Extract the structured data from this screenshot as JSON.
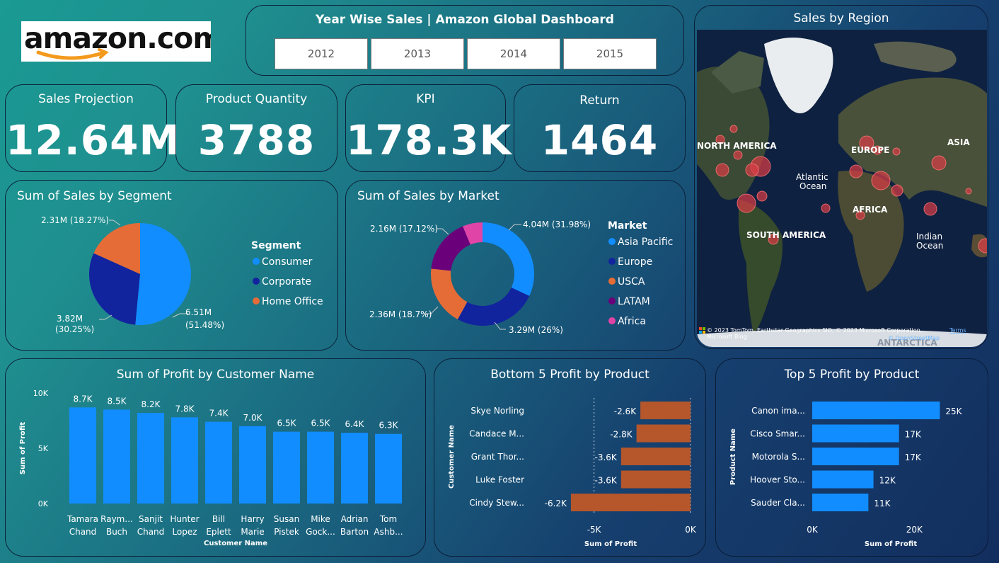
{
  "logo": {
    "text": "amazon.com"
  },
  "filter": {
    "title": "Year Wise Sales | Amazon Global Dashboard",
    "years": [
      "2012",
      "2013",
      "2014",
      "2015"
    ]
  },
  "kpis": [
    {
      "label": "Sales Projection",
      "value": "12.64M"
    },
    {
      "label": "Product Quantity",
      "value": "3788"
    },
    {
      "label": "KPI",
      "value": "178.3K"
    },
    {
      "label": "Return",
      "value": "1464"
    }
  ],
  "map": {
    "title": "Sales by Region",
    "labels": [
      "NORTH AMERICA",
      "EUROPE",
      "ASIA",
      "Atlantic",
      "Ocean",
      "AFRICA",
      "SOUTH AMERICA",
      "Indian",
      "Ocean",
      "ANTARCTICA"
    ],
    "attribution": "© 2023 TomTom, Earthstar Geographics SIO, © 2023 Microsoft Corporation,",
    "terms": "Terms",
    "osm": "© OpenStreetMap",
    "bing": "Microsoft Bing"
  },
  "colors": {
    "blue": "#118dff",
    "navy": "#12239e",
    "orange": "#e66c37",
    "purple": "#6b007b",
    "pink": "#e044a7",
    "brown": "#b5562b"
  },
  "chart_data": [
    {
      "id": "segment",
      "type": "pie",
      "title": "Sum of Sales by Segment",
      "legend_title": "Segment",
      "categories": [
        "Consumer",
        "Corporate",
        "Home Office"
      ],
      "values": [
        6.51,
        3.82,
        2.31
      ],
      "percents": [
        51.48,
        30.25,
        18.27
      ],
      "labels": [
        "6.51M",
        "3.82M",
        "2.31M (18.27%)"
      ],
      "label_percents": [
        "(51.48%)",
        "(30.25%)",
        ""
      ],
      "colors": [
        "#118dff",
        "#12239e",
        "#e66c37"
      ],
      "legend_position": "right"
    },
    {
      "id": "market",
      "type": "pie",
      "title": "Sum of Sales by Market",
      "legend_title": "Market",
      "categories": [
        "Asia Pacific",
        "Europe",
        "USCA",
        "LATAM",
        "Africa"
      ],
      "values": [
        4.04,
        3.29,
        2.36,
        2.16,
        0.79
      ],
      "percents": [
        31.98,
        26,
        18.7,
        17.12,
        6.2
      ],
      "labels": [
        "4.04M (31.98%)",
        "3.29M (26%)",
        "2.36M (18.7%)",
        "2.16M (17.12%)"
      ],
      "colors": [
        "#118dff",
        "#12239e",
        "#e66c37",
        "#6b007b",
        "#e044a7"
      ],
      "legend_position": "right"
    },
    {
      "id": "customer",
      "type": "bar",
      "title": "Sum of Profit by Customer Name",
      "xlabel": "Customer Name",
      "ylabel": "Sum of Profit",
      "categories": [
        [
          "Tamara",
          "Chand"
        ],
        [
          "Raym...",
          "Buch"
        ],
        [
          "Sanjit",
          "Chand"
        ],
        [
          "Hunter",
          "Lopez"
        ],
        [
          "Bill",
          "Eplett"
        ],
        [
          "Harry",
          "Marie"
        ],
        [
          "Susan",
          "Pistek"
        ],
        [
          "Mike",
          "Gock..."
        ],
        [
          "Adrian",
          "Barton"
        ],
        [
          "Tom",
          "Ashb..."
        ]
      ],
      "values": [
        8.7,
        8.5,
        8.2,
        7.8,
        7.4,
        7.0,
        6.5,
        6.5,
        6.4,
        6.3
      ],
      "value_labels": [
        "8.7K",
        "8.5K",
        "8.2K",
        "7.8K",
        "7.4K",
        "7.0K",
        "6.5K",
        "6.5K",
        "6.4K",
        "6.3K"
      ],
      "yticks": [
        "0K",
        "5K",
        "10K"
      ],
      "ylim": [
        0,
        10
      ],
      "color": "#118dff"
    },
    {
      "id": "bottom5",
      "type": "bar",
      "orientation": "horizontal",
      "title": "Bottom 5 Profit by Product",
      "xlabel": "Sum of Profit",
      "ylabel": "Customer Name",
      "categories": [
        "Skye Norling",
        "Candace M...",
        "Grant Thor...",
        "Luke Foster",
        "Cindy Stew..."
      ],
      "values": [
        -2.6,
        -2.8,
        -3.6,
        -3.6,
        -6.2
      ],
      "value_labels": [
        "-2.6K",
        "-2.8K",
        "-3.6K",
        "-3.6K",
        "-6.2K"
      ],
      "xticks": [
        "-5K",
        "0K"
      ],
      "xlim": [
        -6.6,
        0
      ],
      "color": "#b5562b"
    },
    {
      "id": "top5",
      "type": "bar",
      "orientation": "horizontal",
      "title": "Top 5 Profit by Product",
      "xlabel": "Sum of Profit",
      "ylabel": "Product Name",
      "categories": [
        "Canon ima...",
        "Cisco Smar...",
        "Motorola S...",
        "Hoover Sto...",
        "Sauder Cla..."
      ],
      "values": [
        25,
        17,
        17,
        12,
        11
      ],
      "value_labels": [
        "25K",
        "17K",
        "17K",
        "12K",
        "11K"
      ],
      "xticks": [
        "0K",
        "20K"
      ],
      "xlim": [
        0,
        25.5
      ],
      "color": "#118dff"
    }
  ]
}
